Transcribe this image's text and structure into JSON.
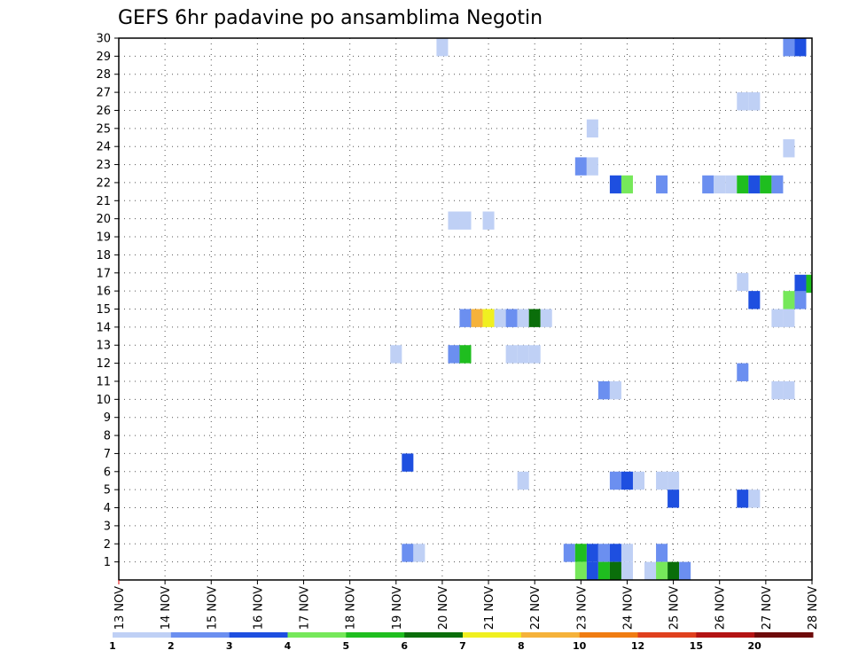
{
  "chart_data": {
    "type": "heatmap",
    "title": "GEFS 6hr padavine po ansamblima Negotin",
    "y_ticks": [
      "1",
      "2",
      "3",
      "4",
      "5",
      "6",
      "7",
      "8",
      "9",
      "10",
      "11",
      "12",
      "13",
      "14",
      "15",
      "16",
      "17",
      "18",
      "19",
      "20",
      "21",
      "22",
      "23",
      "24",
      "25",
      "26",
      "27",
      "28",
      "29",
      "30"
    ],
    "x_ticks": [
      "13 NOV",
      "14 NOV",
      "15 NOV",
      "16 NOV",
      "17 NOV",
      "18 NOV",
      "19 NOV",
      "20 NOV",
      "21 NOV",
      "22 NOV",
      "23 NOV",
      "24 NOV",
      "25 NOV",
      "26 NOV",
      "27 NOV",
      "28 NOV"
    ],
    "ylim": [
      0,
      30
    ],
    "xlim": [
      13,
      28
    ],
    "grid": true,
    "legend": {
      "position": "bottom",
      "labels": [
        "1",
        "2",
        "3",
        "4",
        "5",
        "6",
        "7",
        "8",
        "10",
        "12",
        "15",
        "20"
      ],
      "colors": [
        "#bfd0f5",
        "#6b8ff0",
        "#1e4fe0",
        "#76e85a",
        "#1fbe1f",
        "#0a6e0a",
        "#f0f020",
        "#f5b23a",
        "#f07c12",
        "#e0401e",
        "#b41414",
        "#6e0a0a"
      ]
    },
    "cells": [
      {
        "x": 20.0,
        "y": 29.5,
        "v": 1
      },
      {
        "x": 27.5,
        "y": 29.5,
        "v": 2
      },
      {
        "x": 27.75,
        "y": 29.5,
        "v": 3
      },
      {
        "x": 26.75,
        "y": 26.5,
        "v": 1
      },
      {
        "x": 26.5,
        "y": 26.5,
        "v": 1
      },
      {
        "x": 23.25,
        "y": 25.0,
        "v": 1
      },
      {
        "x": 27.5,
        "y": 23.9,
        "v": 1
      },
      {
        "x": 23.0,
        "y": 22.9,
        "v": 2
      },
      {
        "x": 23.25,
        "y": 22.9,
        "v": 1
      },
      {
        "x": 23.75,
        "y": 21.9,
        "v": 3
      },
      {
        "x": 24.0,
        "y": 21.9,
        "v": 4
      },
      {
        "x": 24.75,
        "y": 21.9,
        "v": 2
      },
      {
        "x": 25.75,
        "y": 21.9,
        "v": 2
      },
      {
        "x": 26.0,
        "y": 21.9,
        "v": 1
      },
      {
        "x": 26.25,
        "y": 21.9,
        "v": 1
      },
      {
        "x": 26.5,
        "y": 21.9,
        "v": 5
      },
      {
        "x": 26.75,
        "y": 21.9,
        "v": 3
      },
      {
        "x": 27.0,
        "y": 21.9,
        "v": 5
      },
      {
        "x": 27.25,
        "y": 21.9,
        "v": 2
      },
      {
        "x": 20.25,
        "y": 19.9,
        "v": 1
      },
      {
        "x": 20.5,
        "y": 19.9,
        "v": 1
      },
      {
        "x": 21.0,
        "y": 19.9,
        "v": 1
      },
      {
        "x": 26.5,
        "y": 16.5,
        "v": 1
      },
      {
        "x": 27.75,
        "y": 16.4,
        "v": 3
      },
      {
        "x": 28.0,
        "y": 16.4,
        "v": 5
      },
      {
        "x": 26.75,
        "y": 15.5,
        "v": 3
      },
      {
        "x": 27.5,
        "y": 15.5,
        "v": 4
      },
      {
        "x": 27.75,
        "y": 15.5,
        "v": 2
      },
      {
        "x": 20.5,
        "y": 14.5,
        "v": 2
      },
      {
        "x": 20.75,
        "y": 14.5,
        "v": 8
      },
      {
        "x": 21.0,
        "y": 14.5,
        "v": 7
      },
      {
        "x": 21.25,
        "y": 14.5,
        "v": 1
      },
      {
        "x": 21.5,
        "y": 14.5,
        "v": 2
      },
      {
        "x": 21.75,
        "y": 14.5,
        "v": 1
      },
      {
        "x": 22.0,
        "y": 14.5,
        "v": 6
      },
      {
        "x": 22.25,
        "y": 14.5,
        "v": 1
      },
      {
        "x": 27.25,
        "y": 14.5,
        "v": 1
      },
      {
        "x": 27.5,
        "y": 14.5,
        "v": 1
      },
      {
        "x": 19.0,
        "y": 12.5,
        "v": 1
      },
      {
        "x": 20.25,
        "y": 12.5,
        "v": 2
      },
      {
        "x": 20.5,
        "y": 12.5,
        "v": 5
      },
      {
        "x": 21.5,
        "y": 12.5,
        "v": 1
      },
      {
        "x": 21.75,
        "y": 12.5,
        "v": 1
      },
      {
        "x": 22.0,
        "y": 12.5,
        "v": 1
      },
      {
        "x": 26.5,
        "y": 11.5,
        "v": 2
      },
      {
        "x": 23.5,
        "y": 10.5,
        "v": 2
      },
      {
        "x": 23.75,
        "y": 10.5,
        "v": 1
      },
      {
        "x": 27.25,
        "y": 10.5,
        "v": 1
      },
      {
        "x": 27.5,
        "y": 10.5,
        "v": 1
      },
      {
        "x": 19.25,
        "y": 6.5,
        "v": 3
      },
      {
        "x": 21.75,
        "y": 5.5,
        "v": 1
      },
      {
        "x": 23.75,
        "y": 5.5,
        "v": 2
      },
      {
        "x": 24.0,
        "y": 5.5,
        "v": 3
      },
      {
        "x": 24.25,
        "y": 5.5,
        "v": 1
      },
      {
        "x": 24.75,
        "y": 5.5,
        "v": 1
      },
      {
        "x": 25.0,
        "y": 5.5,
        "v": 1
      },
      {
        "x": 25.0,
        "y": 4.5,
        "v": 3
      },
      {
        "x": 26.5,
        "y": 4.5,
        "v": 3
      },
      {
        "x": 26.75,
        "y": 4.5,
        "v": 1
      },
      {
        "x": 19.25,
        "y": 1.5,
        "v": 2
      },
      {
        "x": 19.5,
        "y": 1.5,
        "v": 1
      },
      {
        "x": 22.75,
        "y": 1.5,
        "v": 2
      },
      {
        "x": 23.0,
        "y": 1.5,
        "v": 5
      },
      {
        "x": 23.25,
        "y": 1.5,
        "v": 3
      },
      {
        "x": 23.5,
        "y": 1.5,
        "v": 2
      },
      {
        "x": 23.75,
        "y": 1.5,
        "v": 3
      },
      {
        "x": 24.0,
        "y": 1.5,
        "v": 1
      },
      {
        "x": 24.75,
        "y": 1.5,
        "v": 2
      },
      {
        "x": 23.0,
        "y": 0.5,
        "v": 4
      },
      {
        "x": 23.25,
        "y": 0.5,
        "v": 3
      },
      {
        "x": 23.5,
        "y": 0.5,
        "v": 5
      },
      {
        "x": 23.75,
        "y": 0.5,
        "v": 6
      },
      {
        "x": 24.0,
        "y": 0.5,
        "v": 1
      },
      {
        "x": 24.5,
        "y": 0.5,
        "v": 1
      },
      {
        "x": 24.75,
        "y": 0.5,
        "v": 4
      },
      {
        "x": 25.0,
        "y": 0.5,
        "v": 6
      },
      {
        "x": 25.25,
        "y": 0.5,
        "v": 2
      }
    ]
  }
}
